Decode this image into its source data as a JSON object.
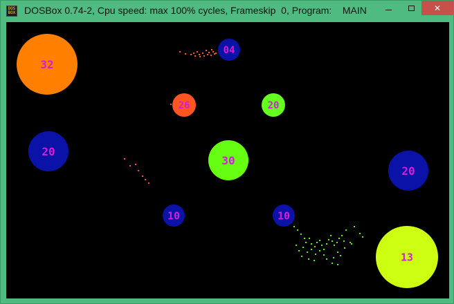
{
  "window": {
    "title": "DOSBox 0.74-2, Cpu speed: max 100% cycles, Frameskip  0, Program:    MAIN",
    "icon_text_top": "DOS",
    "icon_text_bottom": "BOX",
    "icon_name": "dosbox-icon",
    "minimize_icon": "minimize-icon",
    "maximize_icon": "maximize-icon",
    "close_icon": "close-icon",
    "close_glyph": "✕",
    "colors": {
      "frame": "#4fbb80",
      "close": "#c7504a",
      "screen": "#000000"
    }
  },
  "game": {
    "label_color": "#d21fd6",
    "balls": [
      {
        "label": "32",
        "color": "#ff7f00"
      },
      {
        "label": "04",
        "color": "#0a12a8"
      },
      {
        "label": "26",
        "color": "#ff5522"
      },
      {
        "label": "20",
        "color": "#66ff22"
      },
      {
        "label": "20",
        "color": "#0a12a8"
      },
      {
        "label": "30",
        "color": "#66ff11"
      },
      {
        "label": "20",
        "color": "#0a12a8"
      },
      {
        "label": "10",
        "color": "#0a12a8"
      },
      {
        "label": "10",
        "color": "#0a12a8"
      },
      {
        "label": "13",
        "color": "#ccff11"
      }
    ],
    "particle_groups": [
      {
        "name": "orange-particles-top",
        "color": "#ff5522"
      },
      {
        "name": "orange-particles-left",
        "color": "#ff5522"
      },
      {
        "name": "green-particles",
        "color": "#55ee22"
      }
    ]
  }
}
